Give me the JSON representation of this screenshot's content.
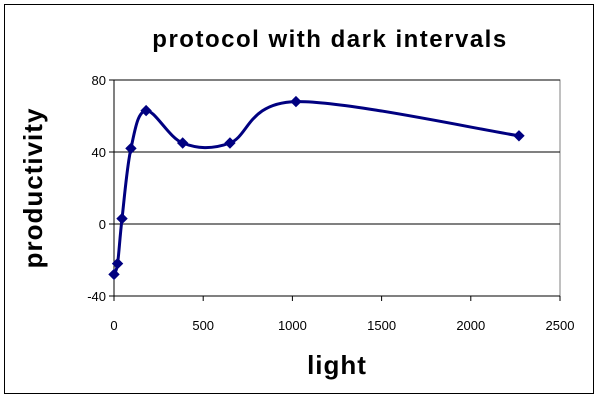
{
  "chart_data": {
    "type": "scatter",
    "title": "protocol with dark intervals",
    "xlabel": "light",
    "ylabel": "productivity",
    "xlim": [
      0,
      2500
    ],
    "ylim": [
      -40,
      80
    ],
    "x_ticks": [
      0,
      500,
      1000,
      1500,
      2000,
      2500
    ],
    "y_ticks": [
      -40,
      0,
      40,
      80
    ],
    "x_tick_labels": [
      "0",
      "500",
      "1000",
      "1500",
      "2000",
      "2500"
    ],
    "y_tick_labels": [
      "-40",
      "0",
      "40",
      "80"
    ],
    "grid": "horizontal",
    "legend": "none",
    "smooth_line": true,
    "marker": "diamond",
    "series_color": "#000080",
    "series": [
      {
        "x": [
          0,
          20,
          45,
          95,
          180,
          385,
          650,
          1020,
          2270
        ],
        "y": [
          -28,
          -22,
          3,
          42,
          63,
          45,
          45,
          68,
          49
        ]
      }
    ]
  }
}
